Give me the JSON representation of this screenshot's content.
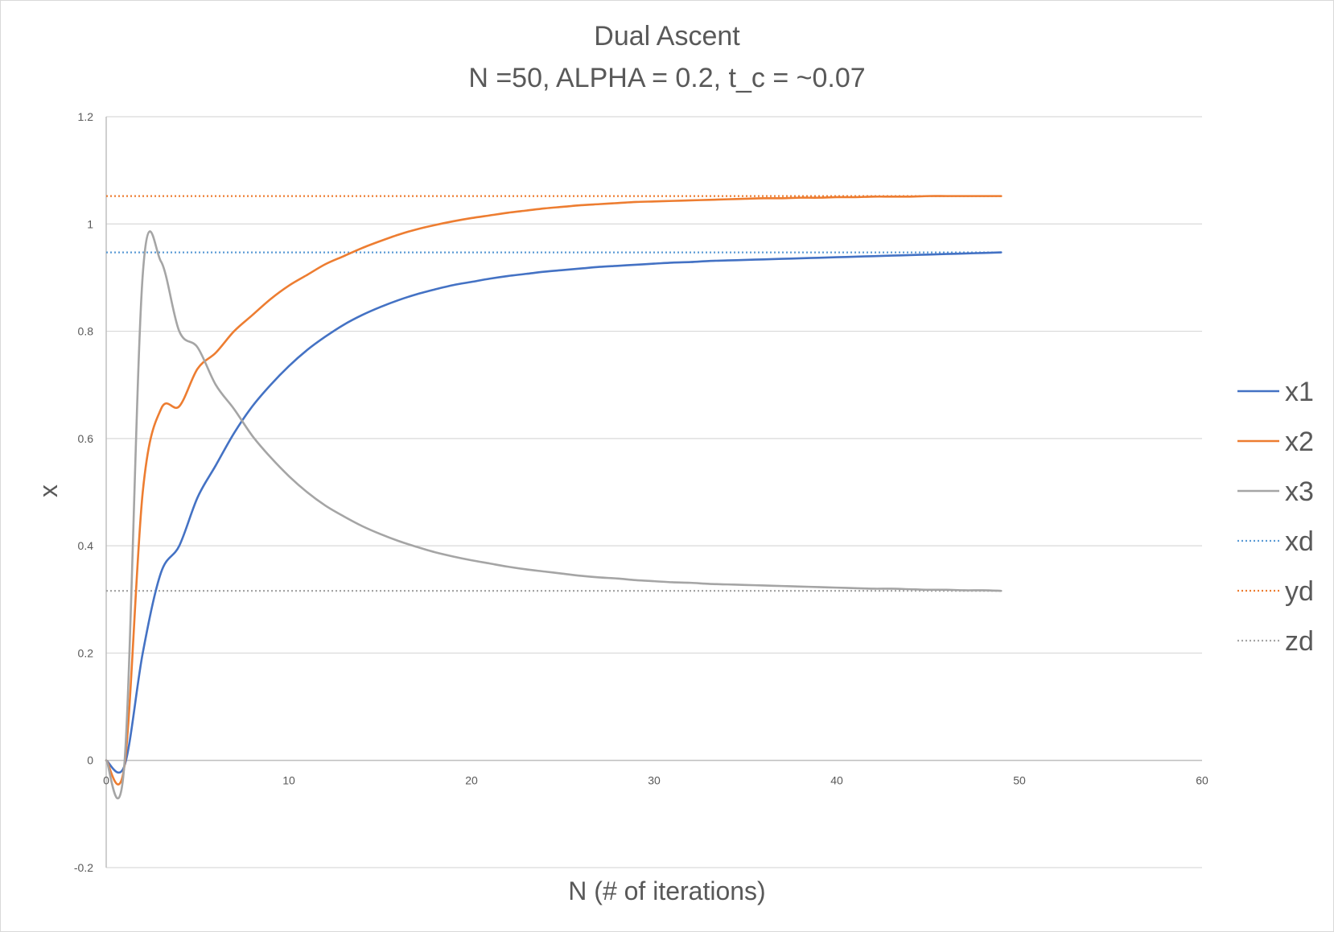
{
  "chart_data": {
    "type": "line",
    "title": "Dual Ascent",
    "subtitle": "N =50, ALPHA = 0.2, t_c = ~0.07",
    "xlabel": "N (# of iterations)",
    "ylabel": "x",
    "xlim": [
      0,
      60
    ],
    "ylim": [
      -0.2,
      1.2
    ],
    "x_ticks": [
      "0",
      "10",
      "20",
      "30",
      "40",
      "50",
      "60"
    ],
    "y_ticks": [
      "-0.2",
      "0",
      "0.2",
      "0.4",
      "0.6",
      "0.8",
      "1",
      "1.2"
    ],
    "grid": true,
    "legend_position": "right",
    "x": [
      0,
      1,
      2,
      3,
      4,
      5,
      6,
      7,
      8,
      9,
      10,
      11,
      12,
      13,
      14,
      15,
      16,
      17,
      18,
      19,
      20,
      21,
      22,
      23,
      24,
      25,
      26,
      27,
      28,
      29,
      30,
      31,
      32,
      33,
      34,
      35,
      36,
      37,
      38,
      39,
      40,
      41,
      42,
      43,
      44,
      45,
      46,
      47,
      48,
      49
    ],
    "series": [
      {
        "name": "x1",
        "color": "#4472C4",
        "style": "solid",
        "values": [
          0,
          -0.01,
          0.2,
          0.35,
          0.4,
          0.49,
          0.55,
          0.61,
          0.66,
          0.7,
          0.735,
          0.765,
          0.79,
          0.812,
          0.83,
          0.845,
          0.858,
          0.869,
          0.878,
          0.886,
          0.892,
          0.898,
          0.903,
          0.907,
          0.911,
          0.914,
          0.917,
          0.92,
          0.922,
          0.924,
          0.926,
          0.928,
          0.929,
          0.931,
          0.932,
          0.933,
          0.934,
          0.935,
          0.936,
          0.937,
          0.938,
          0.939,
          0.94,
          0.941,
          0.942,
          0.943,
          0.944,
          0.945,
          0.946,
          0.947
        ]
      },
      {
        "name": "x2",
        "color": "#ED7D31",
        "style": "solid",
        "values": [
          0,
          -0.01,
          0.5,
          0.655,
          0.66,
          0.73,
          0.76,
          0.8,
          0.83,
          0.86,
          0.885,
          0.905,
          0.925,
          0.94,
          0.955,
          0.968,
          0.98,
          0.99,
          0.998,
          1.005,
          1.011,
          1.016,
          1.021,
          1.025,
          1.029,
          1.032,
          1.035,
          1.037,
          1.039,
          1.041,
          1.042,
          1.043,
          1.044,
          1.045,
          1.046,
          1.047,
          1.048,
          1.048,
          1.049,
          1.049,
          1.05,
          1.05,
          1.051,
          1.051,
          1.051,
          1.052,
          1.052,
          1.052,
          1.052,
          1.052
        ]
      },
      {
        "name": "x3",
        "color": "#A5A5A5",
        "style": "solid",
        "values": [
          0,
          -0.005,
          0.905,
          0.93,
          0.8,
          0.77,
          0.7,
          0.655,
          0.605,
          0.565,
          0.53,
          0.5,
          0.475,
          0.455,
          0.437,
          0.422,
          0.409,
          0.398,
          0.388,
          0.38,
          0.373,
          0.367,
          0.361,
          0.356,
          0.352,
          0.348,
          0.344,
          0.341,
          0.339,
          0.336,
          0.334,
          0.332,
          0.331,
          0.329,
          0.328,
          0.327,
          0.326,
          0.325,
          0.324,
          0.323,
          0.322,
          0.321,
          0.32,
          0.32,
          0.319,
          0.318,
          0.318,
          0.317,
          0.317,
          0.316
        ]
      },
      {
        "name": "xd",
        "color": "#5B9BD5",
        "style": "dotted",
        "constant": 0.947,
        "x_range": [
          0,
          49
        ]
      },
      {
        "name": "yd",
        "color": "#ED7D31",
        "style": "dotted",
        "constant": 1.052,
        "x_range": [
          0,
          49
        ]
      },
      {
        "name": "zd",
        "color": "#A5A5A5",
        "style": "dotted",
        "constant": 0.316,
        "x_range": [
          0,
          49
        ]
      }
    ]
  }
}
